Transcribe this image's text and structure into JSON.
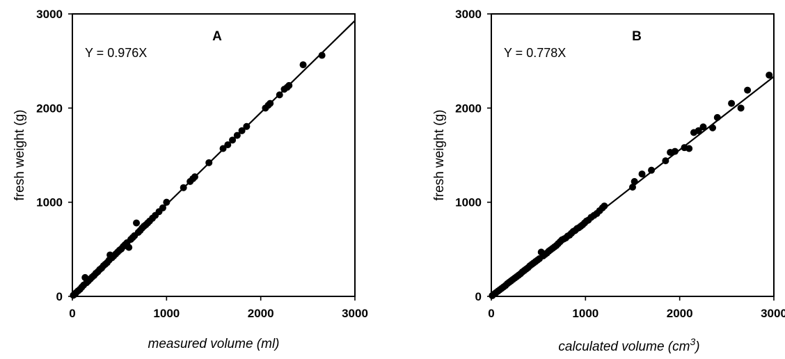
{
  "chart_data": [
    {
      "type": "scatter",
      "panel_label": "A",
      "equation": "Y = 0.976X",
      "xlabel": "measured volume (ml)",
      "ylabel": "fresh weight (g)",
      "xlim": [
        0,
        3000
      ],
      "ylim": [
        0,
        3000
      ],
      "x_ticks": [
        "0",
        "1000",
        "2000",
        "3000"
      ],
      "y_ticks": [
        "0",
        "1000",
        "2000",
        "3000"
      ],
      "fit_line": {
        "slope": 0.976,
        "x": [
          0,
          3000
        ]
      },
      "series": [
        {
          "points": [
            [
              10,
              12
            ],
            [
              25,
              22
            ],
            [
              40,
              40
            ],
            [
              60,
              58
            ],
            [
              80,
              75
            ],
            [
              100,
              98
            ],
            [
              120,
              120
            ],
            [
              135,
              200
            ],
            [
              150,
              145
            ],
            [
              170,
              165
            ],
            [
              190,
              185
            ],
            [
              210,
              205
            ],
            [
              230,
              222
            ],
            [
              250,
              245
            ],
            [
              270,
              262
            ],
            [
              290,
              285
            ],
            [
              310,
              300
            ],
            [
              330,
              325
            ],
            [
              350,
              342
            ],
            [
              370,
              360
            ],
            [
              390,
              385
            ],
            [
              400,
              440
            ],
            [
              420,
              410
            ],
            [
              440,
              430
            ],
            [
              460,
              450
            ],
            [
              480,
              470
            ],
            [
              500,
              490
            ],
            [
              520,
              505
            ],
            [
              540,
              530
            ],
            [
              560,
              550
            ],
            [
              580,
              570
            ],
            [
              600,
              520
            ],
            [
              620,
              605
            ],
            [
              640,
              625
            ],
            [
              660,
              645
            ],
            [
              680,
              780
            ],
            [
              700,
              680
            ],
            [
              720,
              700
            ],
            [
              740,
              725
            ],
            [
              760,
              745
            ],
            [
              780,
              760
            ],
            [
              800,
              780
            ],
            [
              820,
              800
            ],
            [
              850,
              830
            ],
            [
              880,
              860
            ],
            [
              920,
              900
            ],
            [
              960,
              940
            ],
            [
              1000,
              1000
            ],
            [
              1180,
              1155
            ],
            [
              1250,
              1220
            ],
            [
              1280,
              1250
            ],
            [
              1300,
              1270
            ],
            [
              1450,
              1420
            ],
            [
              1600,
              1570
            ],
            [
              1650,
              1610
            ],
            [
              1700,
              1660
            ],
            [
              1750,
              1710
            ],
            [
              1800,
              1760
            ],
            [
              1850,
              1805
            ],
            [
              2050,
              2000
            ],
            [
              2080,
              2030
            ],
            [
              2100,
              2050
            ],
            [
              2200,
              2140
            ],
            [
              2250,
              2200
            ],
            [
              2280,
              2220
            ],
            [
              2300,
              2240
            ],
            [
              2450,
              2460
            ],
            [
              2650,
              2560
            ]
          ]
        }
      ]
    },
    {
      "type": "scatter",
      "panel_label": "B",
      "equation": "Y = 0.778X",
      "xlabel": "calculated volume (cm",
      "xlabel_sup": "3",
      "xlabel_end": ")",
      "ylabel": "fresh weight (g)",
      "xlim": [
        0,
        3000
      ],
      "ylim": [
        0,
        3000
      ],
      "x_ticks": [
        "0",
        "1000",
        "2000",
        "3000"
      ],
      "y_ticks": [
        "0",
        "1000",
        "2000",
        "3000"
      ],
      "fit_line": {
        "slope": 0.778,
        "x": [
          0,
          3000
        ]
      },
      "series": [
        {
          "points": [
            [
              10,
              8
            ],
            [
              30,
              25
            ],
            [
              50,
              40
            ],
            [
              70,
              55
            ],
            [
              90,
              70
            ],
            [
              110,
              85
            ],
            [
              130,
              100
            ],
            [
              150,
              115
            ],
            [
              170,
              135
            ],
            [
              190,
              150
            ],
            [
              210,
              165
            ],
            [
              230,
              180
            ],
            [
              250,
              195
            ],
            [
              270,
              210
            ],
            [
              290,
              225
            ],
            [
              310,
              240
            ],
            [
              330,
              260
            ],
            [
              350,
              275
            ],
            [
              370,
              290
            ],
            [
              390,
              305
            ],
            [
              410,
              325
            ],
            [
              430,
              340
            ],
            [
              450,
              355
            ],
            [
              470,
              370
            ],
            [
              490,
              385
            ],
            [
              510,
              400
            ],
            [
              530,
              470
            ],
            [
              550,
              430
            ],
            [
              570,
              445
            ],
            [
              590,
              460
            ],
            [
              610,
              480
            ],
            [
              630,
              495
            ],
            [
              650,
              510
            ],
            [
              670,
              525
            ],
            [
              690,
              540
            ],
            [
              710,
              560
            ],
            [
              730,
              580
            ],
            [
              750,
              600
            ],
            [
              770,
              610
            ],
            [
              790,
              620
            ],
            [
              810,
              640
            ],
            [
              830,
              650
            ],
            [
              850,
              670
            ],
            [
              870,
              690
            ],
            [
              890,
              700
            ],
            [
              910,
              720
            ],
            [
              930,
              730
            ],
            [
              950,
              745
            ],
            [
              970,
              760
            ],
            [
              990,
              780
            ],
            [
              1010,
              800
            ],
            [
              1030,
              810
            ],
            [
              1060,
              840
            ],
            [
              1090,
              860
            ],
            [
              1120,
              880
            ],
            [
              1150,
              910
            ],
            [
              1180,
              940
            ],
            [
              1200,
              960
            ],
            [
              1500,
              1160
            ],
            [
              1520,
              1220
            ],
            [
              1600,
              1300
            ],
            [
              1700,
              1340
            ],
            [
              1850,
              1440
            ],
            [
              1900,
              1530
            ],
            [
              1950,
              1540
            ],
            [
              2050,
              1580
            ],
            [
              2100,
              1570
            ],
            [
              2150,
              1740
            ],
            [
              2200,
              1760
            ],
            [
              2250,
              1800
            ],
            [
              2350,
              1790
            ],
            [
              2400,
              1900
            ],
            [
              2550,
              2050
            ],
            [
              2650,
              2000
            ],
            [
              2720,
              2190
            ],
            [
              2950,
              2350
            ]
          ]
        }
      ]
    }
  ]
}
